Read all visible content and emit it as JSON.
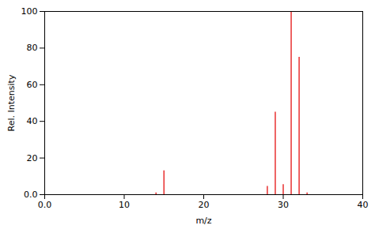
{
  "chart_data": {
    "type": "stem",
    "x": [
      14,
      15,
      28,
      29,
      30,
      31,
      32,
      33
    ],
    "values": [
      1.0,
      13.0,
      4.5,
      45.0,
      5.5,
      100.0,
      75.0,
      1.0
    ],
    "color": "#e83030",
    "xlabel": "m/z",
    "ylabel": "Rel. Intensity",
    "xlim": [
      0.0,
      40.0
    ],
    "ylim": [
      0.0,
      100.0
    ],
    "xticks": [
      {
        "value": 0.0,
        "label": "0.0"
      },
      10,
      20,
      30,
      40
    ],
    "yticks": [
      {
        "value": 0,
        "label": "0.0"
      },
      20,
      40,
      60,
      80,
      100
    ],
    "grid": false
  }
}
